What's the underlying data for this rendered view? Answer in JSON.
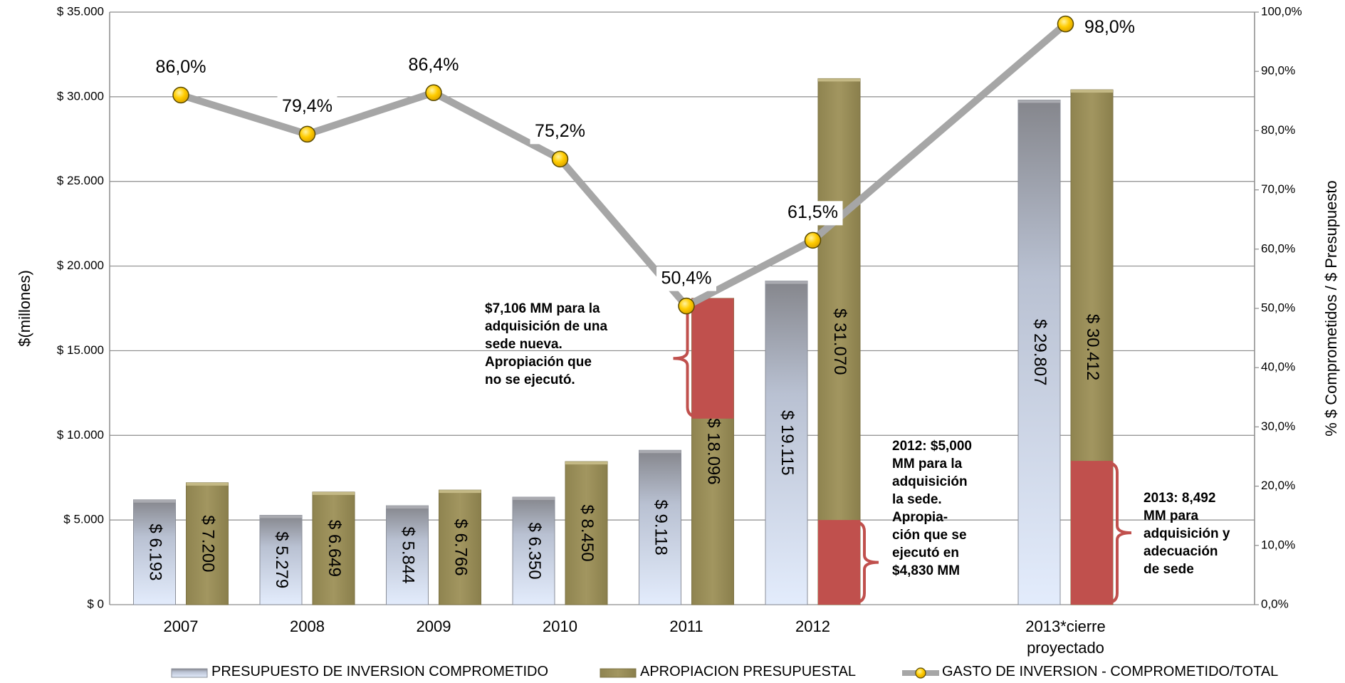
{
  "chart_data": {
    "type": "bar",
    "categories": [
      "2007",
      "2008",
      "2009",
      "2010",
      "2011",
      "2012",
      "2013*cierre proyectado"
    ],
    "series": [
      {
        "name": "PRESUPUESTO DE INVERSION COMPROMETIDO",
        "type": "bar",
        "color": "#b8c4d8",
        "values": [
          6193,
          5279,
          5844,
          6350,
          9118,
          19115,
          29807
        ],
        "value_labels": [
          "$ 6.193",
          "$ 5.279",
          "$ 5.844",
          "$ 6.350",
          "$ 9.118",
          "$ 19.115",
          "$ 29.807"
        ]
      },
      {
        "name": "APROPIACION PRESUPUESTAL",
        "type": "bar",
        "color": "#9b8f5a",
        "values": [
          7200,
          6649,
          6766,
          8450,
          18096,
          31070,
          30412
        ],
        "value_labels": [
          "$ 7.200",
          "$ 6.649",
          "$ 6.766",
          "$ 8.450",
          "$ 18.096",
          "$ 31.070",
          "$ 30.412"
        ]
      },
      {
        "name": "GASTO DE INVERSION - COMPROMETIDO/TOTAL",
        "type": "line",
        "axis": "y2",
        "color": "#a6a6a6",
        "marker_color": "#ffcc00",
        "values": [
          86.0,
          79.4,
          86.4,
          75.2,
          50.4,
          61.5,
          98.0
        ],
        "value_labels": [
          "86,0%",
          "79,4%",
          "86,4%",
          "75,2%",
          "50,4%",
          "61,5%",
          "98,0%"
        ]
      }
    ],
    "ylabel": "$(millones)",
    "y2label": "% $ Comprometidos / $ Presupuesto",
    "ylim": [
      0,
      35000
    ],
    "yticks": [
      {
        "value": 0,
        "label": "$ 0"
      },
      {
        "value": 5000,
        "label": "$ 5.000"
      },
      {
        "value": 10000,
        "label": "$ 10.000"
      },
      {
        "value": 15000,
        "label": "$ 15.000"
      },
      {
        "value": 20000,
        "label": "$ 20.000"
      },
      {
        "value": 25000,
        "label": "$ 25.000"
      },
      {
        "value": 30000,
        "label": "$ 30.000"
      },
      {
        "value": 35000,
        "label": "$ 35.000"
      }
    ],
    "y2lim": [
      0,
      100
    ],
    "y2ticks": [
      {
        "value": 0,
        "label": "0,0%"
      },
      {
        "value": 10,
        "label": "10,0%"
      },
      {
        "value": 20,
        "label": "20,0%"
      },
      {
        "value": 30,
        "label": "30,0%"
      },
      {
        "value": 40,
        "label": "40,0%"
      },
      {
        "value": 50,
        "label": "50,0%"
      },
      {
        "value": 60,
        "label": "60,0%"
      },
      {
        "value": 70,
        "label": "70,0%"
      },
      {
        "value": 80,
        "label": "80,0%"
      },
      {
        "value": 90,
        "label": "90,0%"
      },
      {
        "value": 100,
        "label": "100,0%"
      }
    ],
    "grid": true,
    "legend": "bottom",
    "annotations": [
      {
        "category": 4,
        "series": 1,
        "value": 7106,
        "placement": "top",
        "color": "#c0504d",
        "lines": [
          "$7,106 MM para la",
          "adquisición de una",
          "sede nueva.",
          "Apropiación que",
          "no se ejecutó."
        ]
      },
      {
        "category": 5,
        "series": 1,
        "value": 5000,
        "placement": "bottom",
        "color": "#c0504d",
        "lines": [
          "2012: $5,000",
          "MM para la",
          "adquisición",
          "la sede.",
          "Apropia-",
          "ción que se",
          "ejecutó en",
          "$4,830 MM"
        ]
      },
      {
        "category": 6,
        "series": 1,
        "value": 8492,
        "placement": "bottom",
        "color": "#c0504d",
        "lines": [
          "2013: 8,492",
          "MM para",
          "adquisición y",
          "adecuación",
          "de sede"
        ]
      }
    ]
  }
}
